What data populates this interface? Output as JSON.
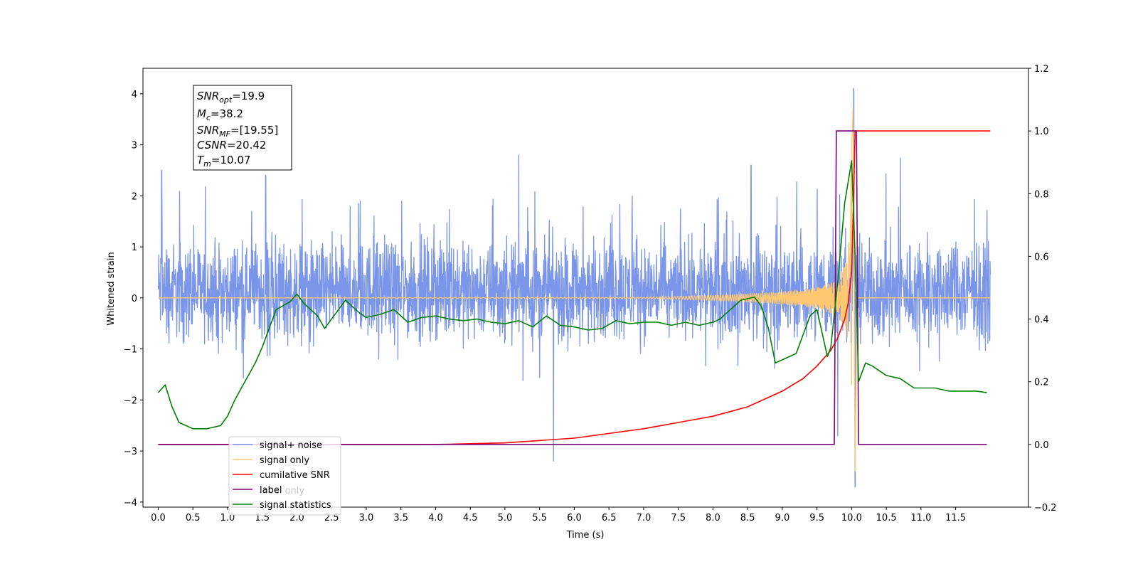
{
  "chart_data": {
    "type": "line",
    "xlabel": "Time (s)",
    "ylabel": "Whitened strain",
    "xlim": [
      -0.22,
      12.55
    ],
    "ylim": [
      -4.1,
      4.5
    ],
    "ylim_right": [
      -0.2,
      1.2
    ],
    "x_ticks": [
      "0.0",
      "0.5",
      "1.0",
      "1.5",
      "2.0",
      "2.5",
      "3.0",
      "3.5",
      "4.0",
      "4.5",
      "5.0",
      "5.5",
      "6.0",
      "6.5",
      "7.0",
      "7.5",
      "8.0",
      "8.5",
      "9.0",
      "9.5",
      "10.0",
      "10.5",
      "11.0",
      "11.5"
    ],
    "y_ticks_left": [
      "4",
      "3",
      "2",
      "1",
      "0",
      "−1",
      "−2",
      "−3",
      "−4"
    ],
    "y_ticks_right": [
      "1.2",
      "1.0",
      "0.8",
      "0.6",
      "0.4",
      "0.2",
      "0.0",
      "−0.2"
    ],
    "annotation": [
      {
        "base": "SNR",
        "sub": "opt",
        "rest": "=19.9"
      },
      {
        "base": "M",
        "sub": "c",
        "rest": "=38.2"
      },
      {
        "base": "SNR",
        "sub": "MF",
        "rest": "=[19.55]"
      },
      {
        "base": "CSNR",
        "sub": "",
        "rest": "=20.42"
      },
      {
        "base": "T",
        "sub": "m",
        "rest": "=10.07"
      }
    ],
    "legend": {
      "placement": "lower-left",
      "entries": [
        {
          "label": "signal+ noise",
          "color": "#7b96e8"
        },
        {
          "label": "signal only",
          "color": "#ffc870"
        },
        {
          "label": "cumilative SNR",
          "color": "#ff0000"
        },
        {
          "label": "label",
          "color": "#800080"
        },
        {
          "label": "signal statistics",
          "color": "#008000"
        }
      ],
      "hidden_text": [
        "label only"
      ]
    },
    "series": [
      {
        "name": "signal+ noise",
        "axis": "left",
        "color": "#7b96e8",
        "note_on_render": "dense noise trace between about -1.7 and 2.5, with spikes at 0.05 (2.5), 1.55 (2.4), 5.2 (2.8), 5.7 (-3.2), 8.55 (2.6), 9.8 (-2.7), 10.03 (4.1), 10.05 (-3.7)",
        "x_range": [
          0.0,
          12.0
        ],
        "band": [
          -1.1,
          1.4
        ]
      },
      {
        "name": "signal only",
        "axis": "left",
        "color": "#ffc870",
        "x": [
          0.0,
          7.0,
          8.0,
          8.5,
          9.0,
          9.5,
          9.8,
          9.95,
          10.02,
          10.05,
          10.08,
          12.0
        ],
        "y_amplitude": [
          0.0,
          0.01,
          0.05,
          0.08,
          0.12,
          0.2,
          0.35,
          0.8,
          3.7,
          -3.4,
          0.0,
          0.0
        ]
      },
      {
        "name": "cumilative SNR",
        "axis": "right",
        "color": "#ff0000",
        "x": [
          0.0,
          4.0,
          5.0,
          6.0,
          7.0,
          7.5,
          8.0,
          8.5,
          9.0,
          9.3,
          9.5,
          9.7,
          9.8,
          9.9,
          9.95,
          10.0,
          10.03,
          10.05,
          12.0
        ],
        "values": [
          0.0,
          0.0,
          0.005,
          0.02,
          0.05,
          0.07,
          0.09,
          0.12,
          0.17,
          0.21,
          0.25,
          0.3,
          0.34,
          0.4,
          0.45,
          0.55,
          0.8,
          1.0,
          1.0
        ]
      },
      {
        "name": "label",
        "axis": "right",
        "color": "#800080",
        "x": [
          0.0,
          9.75,
          9.78,
          10.07,
          10.1,
          11.95
        ],
        "values": [
          0.0,
          0.0,
          1.0,
          1.0,
          0.0,
          0.0
        ]
      },
      {
        "name": "signal statistics",
        "axis": "right",
        "color": "#008000",
        "x": [
          0.0,
          0.1,
          0.2,
          0.3,
          0.5,
          0.7,
          0.9,
          1.0,
          1.1,
          1.2,
          1.3,
          1.4,
          1.5,
          1.7,
          1.9,
          2.0,
          2.1,
          2.3,
          2.4,
          2.6,
          2.7,
          2.9,
          3.0,
          3.2,
          3.4,
          3.6,
          3.8,
          4.0,
          4.2,
          4.4,
          4.6,
          4.8,
          5.0,
          5.2,
          5.4,
          5.6,
          5.8,
          6.0,
          6.2,
          6.4,
          6.6,
          6.8,
          7.0,
          7.2,
          7.4,
          7.6,
          7.8,
          8.0,
          8.1,
          8.2,
          8.4,
          8.6,
          8.7,
          8.8,
          8.9,
          9.0,
          9.2,
          9.4,
          9.5,
          9.6,
          9.65,
          9.7,
          9.8,
          9.9,
          10.0,
          10.05,
          10.1,
          10.2,
          10.3,
          10.5,
          10.7,
          10.9,
          11.0,
          11.2,
          11.4,
          11.6,
          11.8,
          11.95
        ],
        "values": [
          0.165,
          0.19,
          0.12,
          0.07,
          0.05,
          0.05,
          0.06,
          0.09,
          0.14,
          0.18,
          0.22,
          0.26,
          0.31,
          0.43,
          0.455,
          0.48,
          0.45,
          0.41,
          0.37,
          0.43,
          0.46,
          0.42,
          0.405,
          0.415,
          0.43,
          0.39,
          0.405,
          0.41,
          0.4,
          0.395,
          0.4,
          0.39,
          0.385,
          0.395,
          0.375,
          0.41,
          0.38,
          0.375,
          0.365,
          0.37,
          0.395,
          0.385,
          0.39,
          0.39,
          0.38,
          0.39,
          0.38,
          0.39,
          0.4,
          0.42,
          0.46,
          0.47,
          0.44,
          0.37,
          0.26,
          0.27,
          0.29,
          0.41,
          0.43,
          0.33,
          0.28,
          0.31,
          0.52,
          0.77,
          0.905,
          0.6,
          0.2,
          0.26,
          0.25,
          0.22,
          0.21,
          0.18,
          0.18,
          0.18,
          0.17,
          0.17,
          0.17,
          0.165
        ]
      }
    ]
  }
}
